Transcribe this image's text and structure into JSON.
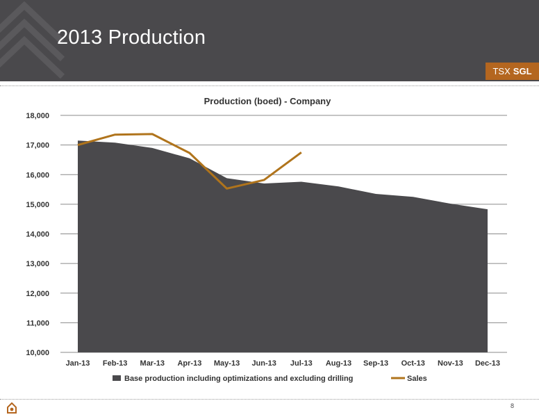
{
  "slide": {
    "title": "2013 Production",
    "ticker_prefix": "TSX",
    "ticker_symbol": "SGL",
    "page_number": "8"
  },
  "colors": {
    "header_bg": "#4a494c",
    "accent": "#b4661f",
    "area_fill": "#4a494c",
    "sales_line": "#b0741c"
  },
  "chart_data": {
    "type": "area",
    "title": "Production (boed) - Company",
    "xlabel": "",
    "ylabel": "",
    "categories": [
      "Jan-13",
      "Feb-13",
      "Mar-13",
      "Apr-13",
      "May-13",
      "Jun-13",
      "Jul-13",
      "Aug-13",
      "Sep-13",
      "Oct-13",
      "Nov-13",
      "Dec-13"
    ],
    "ylim": [
      10000,
      18000
    ],
    "yticks": [
      10000,
      11000,
      12000,
      13000,
      14000,
      15000,
      16000,
      17000,
      18000
    ],
    "ytick_labels": [
      "10,000",
      "11,000",
      "12,000",
      "13,000",
      "14,000",
      "15,000",
      "16,000",
      "17,000",
      "18,000"
    ],
    "grid": true,
    "legend_position": "bottom",
    "series": [
      {
        "name": "Base production including optimizations and excluding drilling",
        "type": "area",
        "color": "#4a494c",
        "values": [
          17150,
          17080,
          16900,
          16550,
          15880,
          15700,
          15760,
          15600,
          15350,
          15250,
          15020,
          14830
        ]
      },
      {
        "name": "Sales",
        "type": "line",
        "color": "#b0741c",
        "values": [
          17000,
          17350,
          17370,
          16730,
          15530,
          15820,
          16750,
          null,
          null,
          null,
          null,
          null
        ]
      }
    ]
  }
}
